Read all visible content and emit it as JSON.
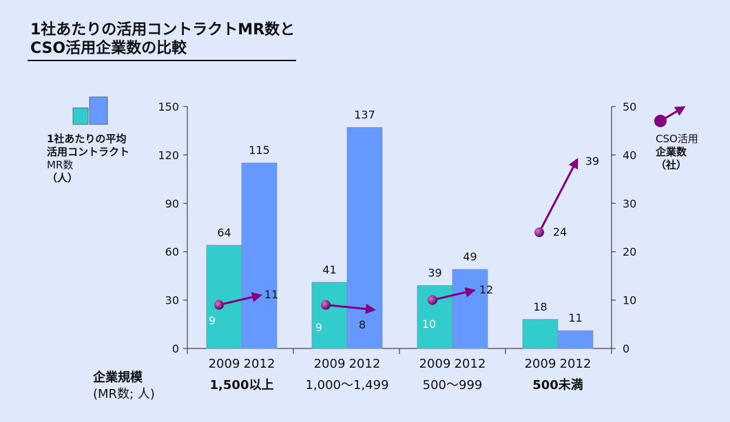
{
  "title": {
    "line1": "1社あたりの活用コントラクトMR数と",
    "line2": "CSO活用企業数の比較"
  },
  "left_legend": {
    "line1": "1社あたりの平均",
    "line2": "活用コントラクト",
    "line3": "MR数",
    "line4": "（人）"
  },
  "right_legend": {
    "line1": "CSO活用",
    "line2": "企業数",
    "line3": "（社）"
  },
  "x_axis_title": {
    "line1": "企業規模",
    "line2": "(MR数; 人)"
  },
  "colors": {
    "bar_2009": "#33cccc",
    "bar_2012": "#6699ff",
    "arrow": "#800080",
    "background": "#dfe9fb"
  },
  "chart_data": {
    "type": "bar",
    "groups": [
      "1,500以上",
      "1,000～1,499",
      "500～999",
      "500未満"
    ],
    "year_labels": [
      "2009",
      "2012"
    ],
    "series": [
      {
        "values": [
          64,
          41,
          39,
          18
        ]
      },
      {
        "values": [
          115,
          137,
          49,
          11
        ]
      }
    ],
    "secondary_series": {
      "type": "line",
      "values_2009": [
        9,
        9,
        10,
        24
      ],
      "values_2012": [
        11,
        8,
        12,
        39
      ]
    },
    "y_left": {
      "ticks": [
        0,
        30,
        60,
        90,
        120,
        150
      ],
      "range": [
        0,
        150
      ]
    },
    "y_right": {
      "ticks": [
        0,
        10,
        20,
        30,
        40,
        50
      ],
      "range": [
        0,
        50
      ]
    },
    "grid": false
  }
}
